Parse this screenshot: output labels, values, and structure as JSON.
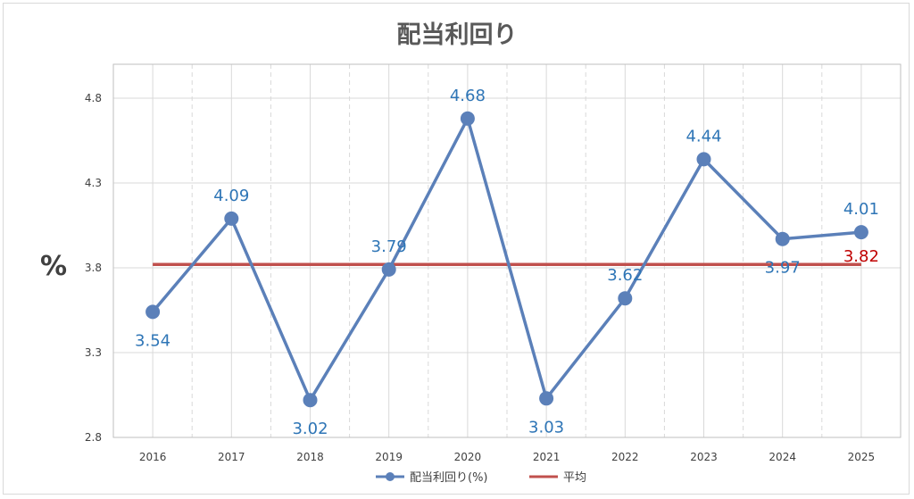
{
  "chart_data": {
    "type": "line",
    "title": "配当利回り",
    "ylabel": "%",
    "xlabel": "",
    "categories": [
      "2016",
      "2017",
      "2018",
      "2019",
      "2020",
      "2021",
      "2022",
      "2023",
      "2024",
      "2025"
    ],
    "series": [
      {
        "name": "配当利回り(%)",
        "color": "#5b80b9",
        "values": [
          3.54,
          4.09,
          3.02,
          3.79,
          4.68,
          3.03,
          3.62,
          4.44,
          3.97,
          4.01
        ],
        "labels": [
          "3.54",
          "4.09",
          "3.02",
          "3.79",
          "4.68",
          "3.03",
          "3.62",
          "4.44",
          "3.97",
          "4.01"
        ]
      },
      {
        "name": "平均",
        "color": "#c0504d",
        "value": 3.82,
        "label": "3.82"
      }
    ],
    "yticks": [
      "2.8",
      "3.3",
      "3.8",
      "4.3",
      "4.8"
    ],
    "ylim": [
      2.8,
      5.0
    ],
    "grid": true,
    "legend": "bottom"
  }
}
